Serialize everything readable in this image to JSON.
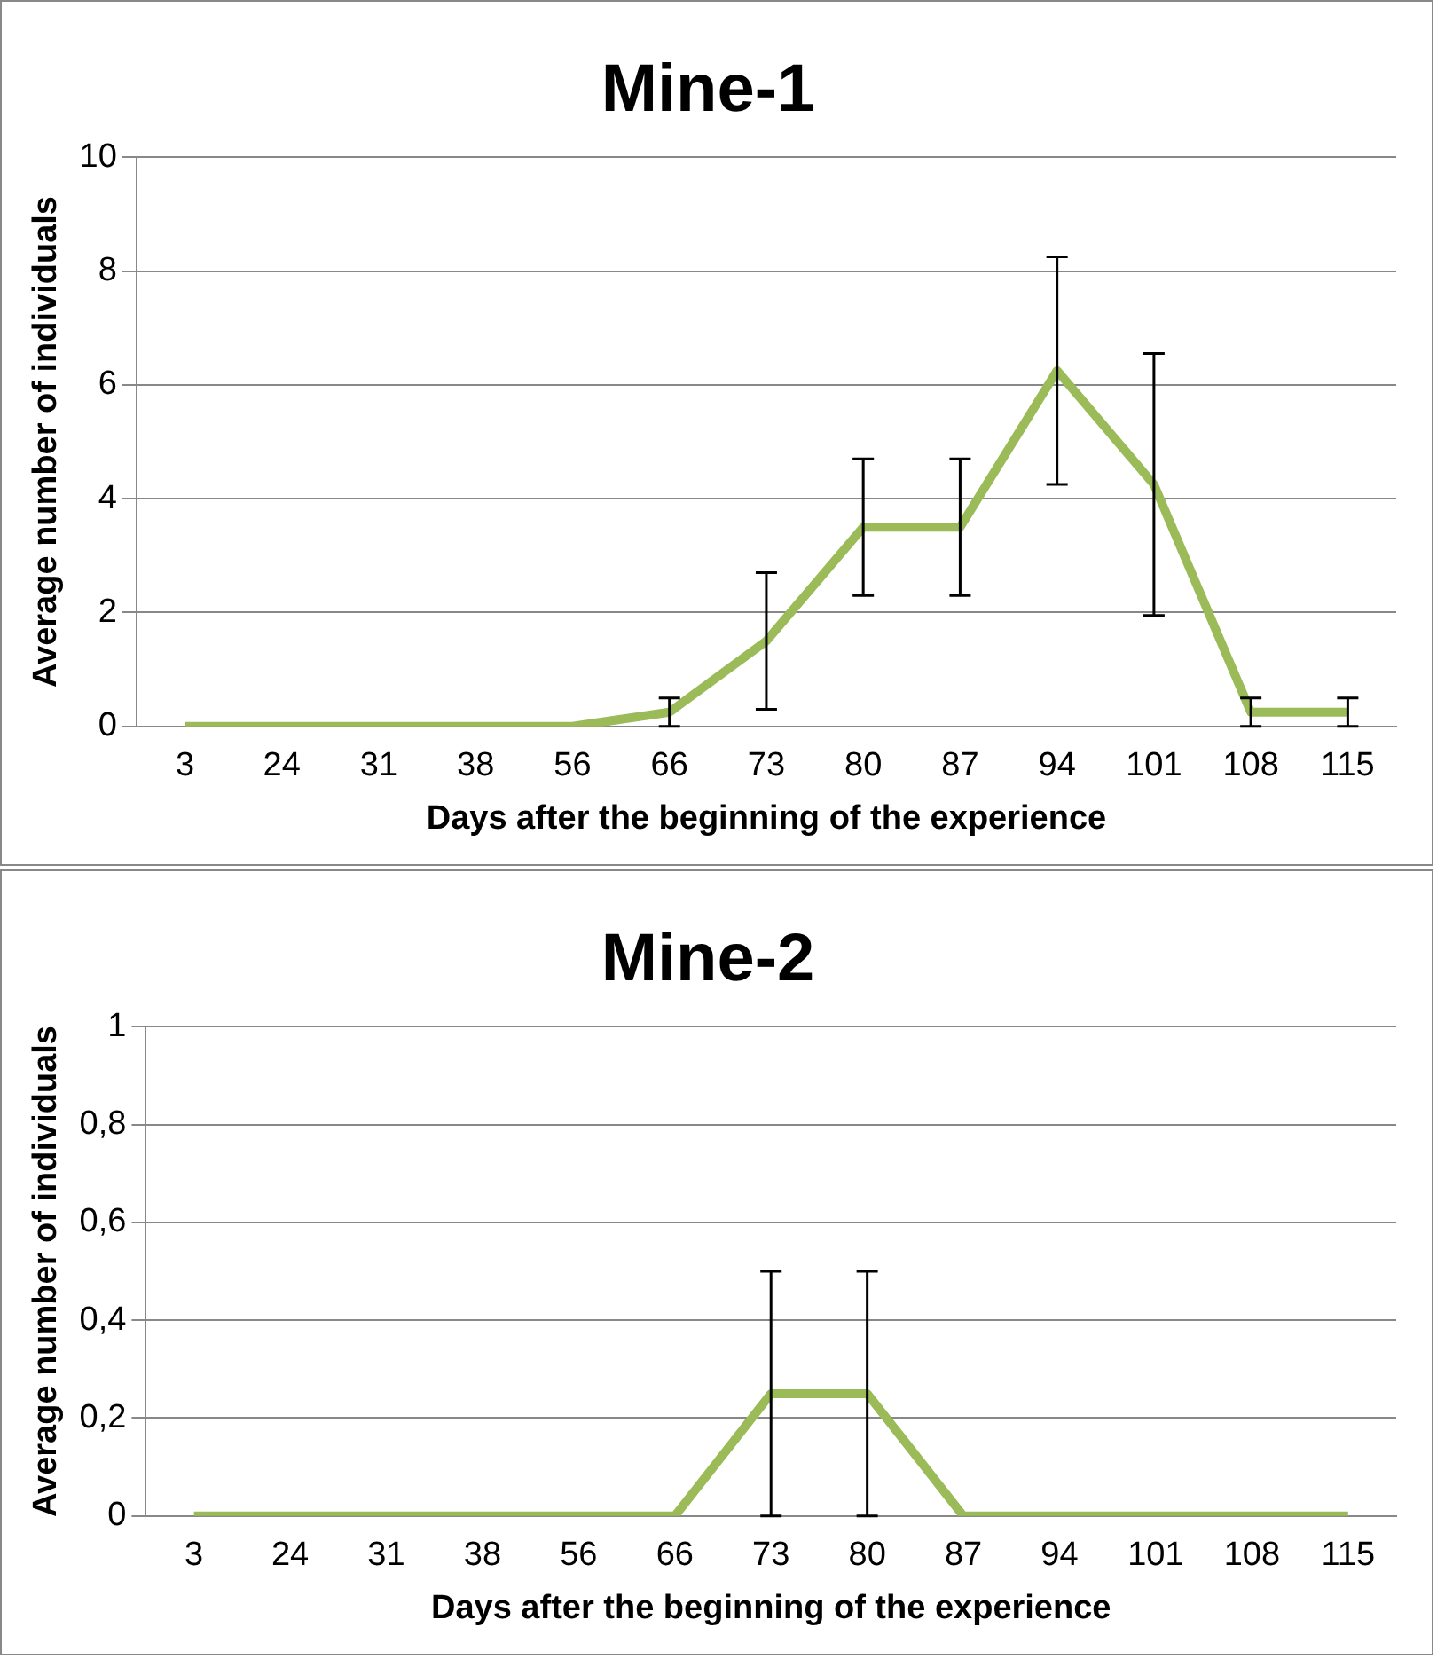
{
  "chart_data": [
    {
      "type": "line",
      "title": "Mine-1",
      "xlabel": "Days after the beginning of the experience",
      "ylabel": "Average number of individuals",
      "categories": [
        "3",
        "24",
        "31",
        "38",
        "56",
        "66",
        "73",
        "80",
        "87",
        "94",
        "101",
        "108",
        "115"
      ],
      "series": [
        {
          "color": "#9bbb59",
          "values": [
            0,
            0,
            0,
            0,
            0,
            0.25,
            1.5,
            3.5,
            3.5,
            6.25,
            4.25,
            0.25,
            0.25
          ],
          "errors": [
            null,
            null,
            null,
            null,
            null,
            0.25,
            1.2,
            1.2,
            1.2,
            2,
            2.3,
            0.25,
            0.25
          ]
        }
      ],
      "ylim": [
        0,
        10
      ],
      "yticks": [
        0,
        2,
        4,
        6,
        8,
        10
      ],
      "grid": "y",
      "legend": false,
      "marker": "none",
      "line_style": "solid"
    },
    {
      "type": "line",
      "title": "Mine-2",
      "xlabel": "Days after the beginning of the experience",
      "ylabel": "Average number of individuals",
      "categories": [
        "3",
        "24",
        "31",
        "38",
        "56",
        "66",
        "73",
        "80",
        "87",
        "94",
        "101",
        "108",
        "115"
      ],
      "series": [
        {
          "color": "#9bbb59",
          "values": [
            0,
            0,
            0,
            0,
            0,
            0,
            0.25,
            0.25,
            0,
            0,
            0,
            0,
            0
          ],
          "errors": [
            null,
            null,
            null,
            null,
            null,
            null,
            0.25,
            0.25,
            null,
            null,
            null,
            null,
            null
          ]
        }
      ],
      "ylim": [
        0,
        1
      ],
      "yticks": [
        0,
        {
          "value": 0.2,
          "label": "0,2"
        },
        {
          "value": 0.4,
          "label": "0,4"
        },
        {
          "value": 0.6,
          "label": "0,6"
        },
        {
          "value": 0.8,
          "label": "0,8"
        },
        1
      ],
      "grid": "y",
      "legend": false,
      "marker": "none",
      "line_style": "solid"
    }
  ]
}
